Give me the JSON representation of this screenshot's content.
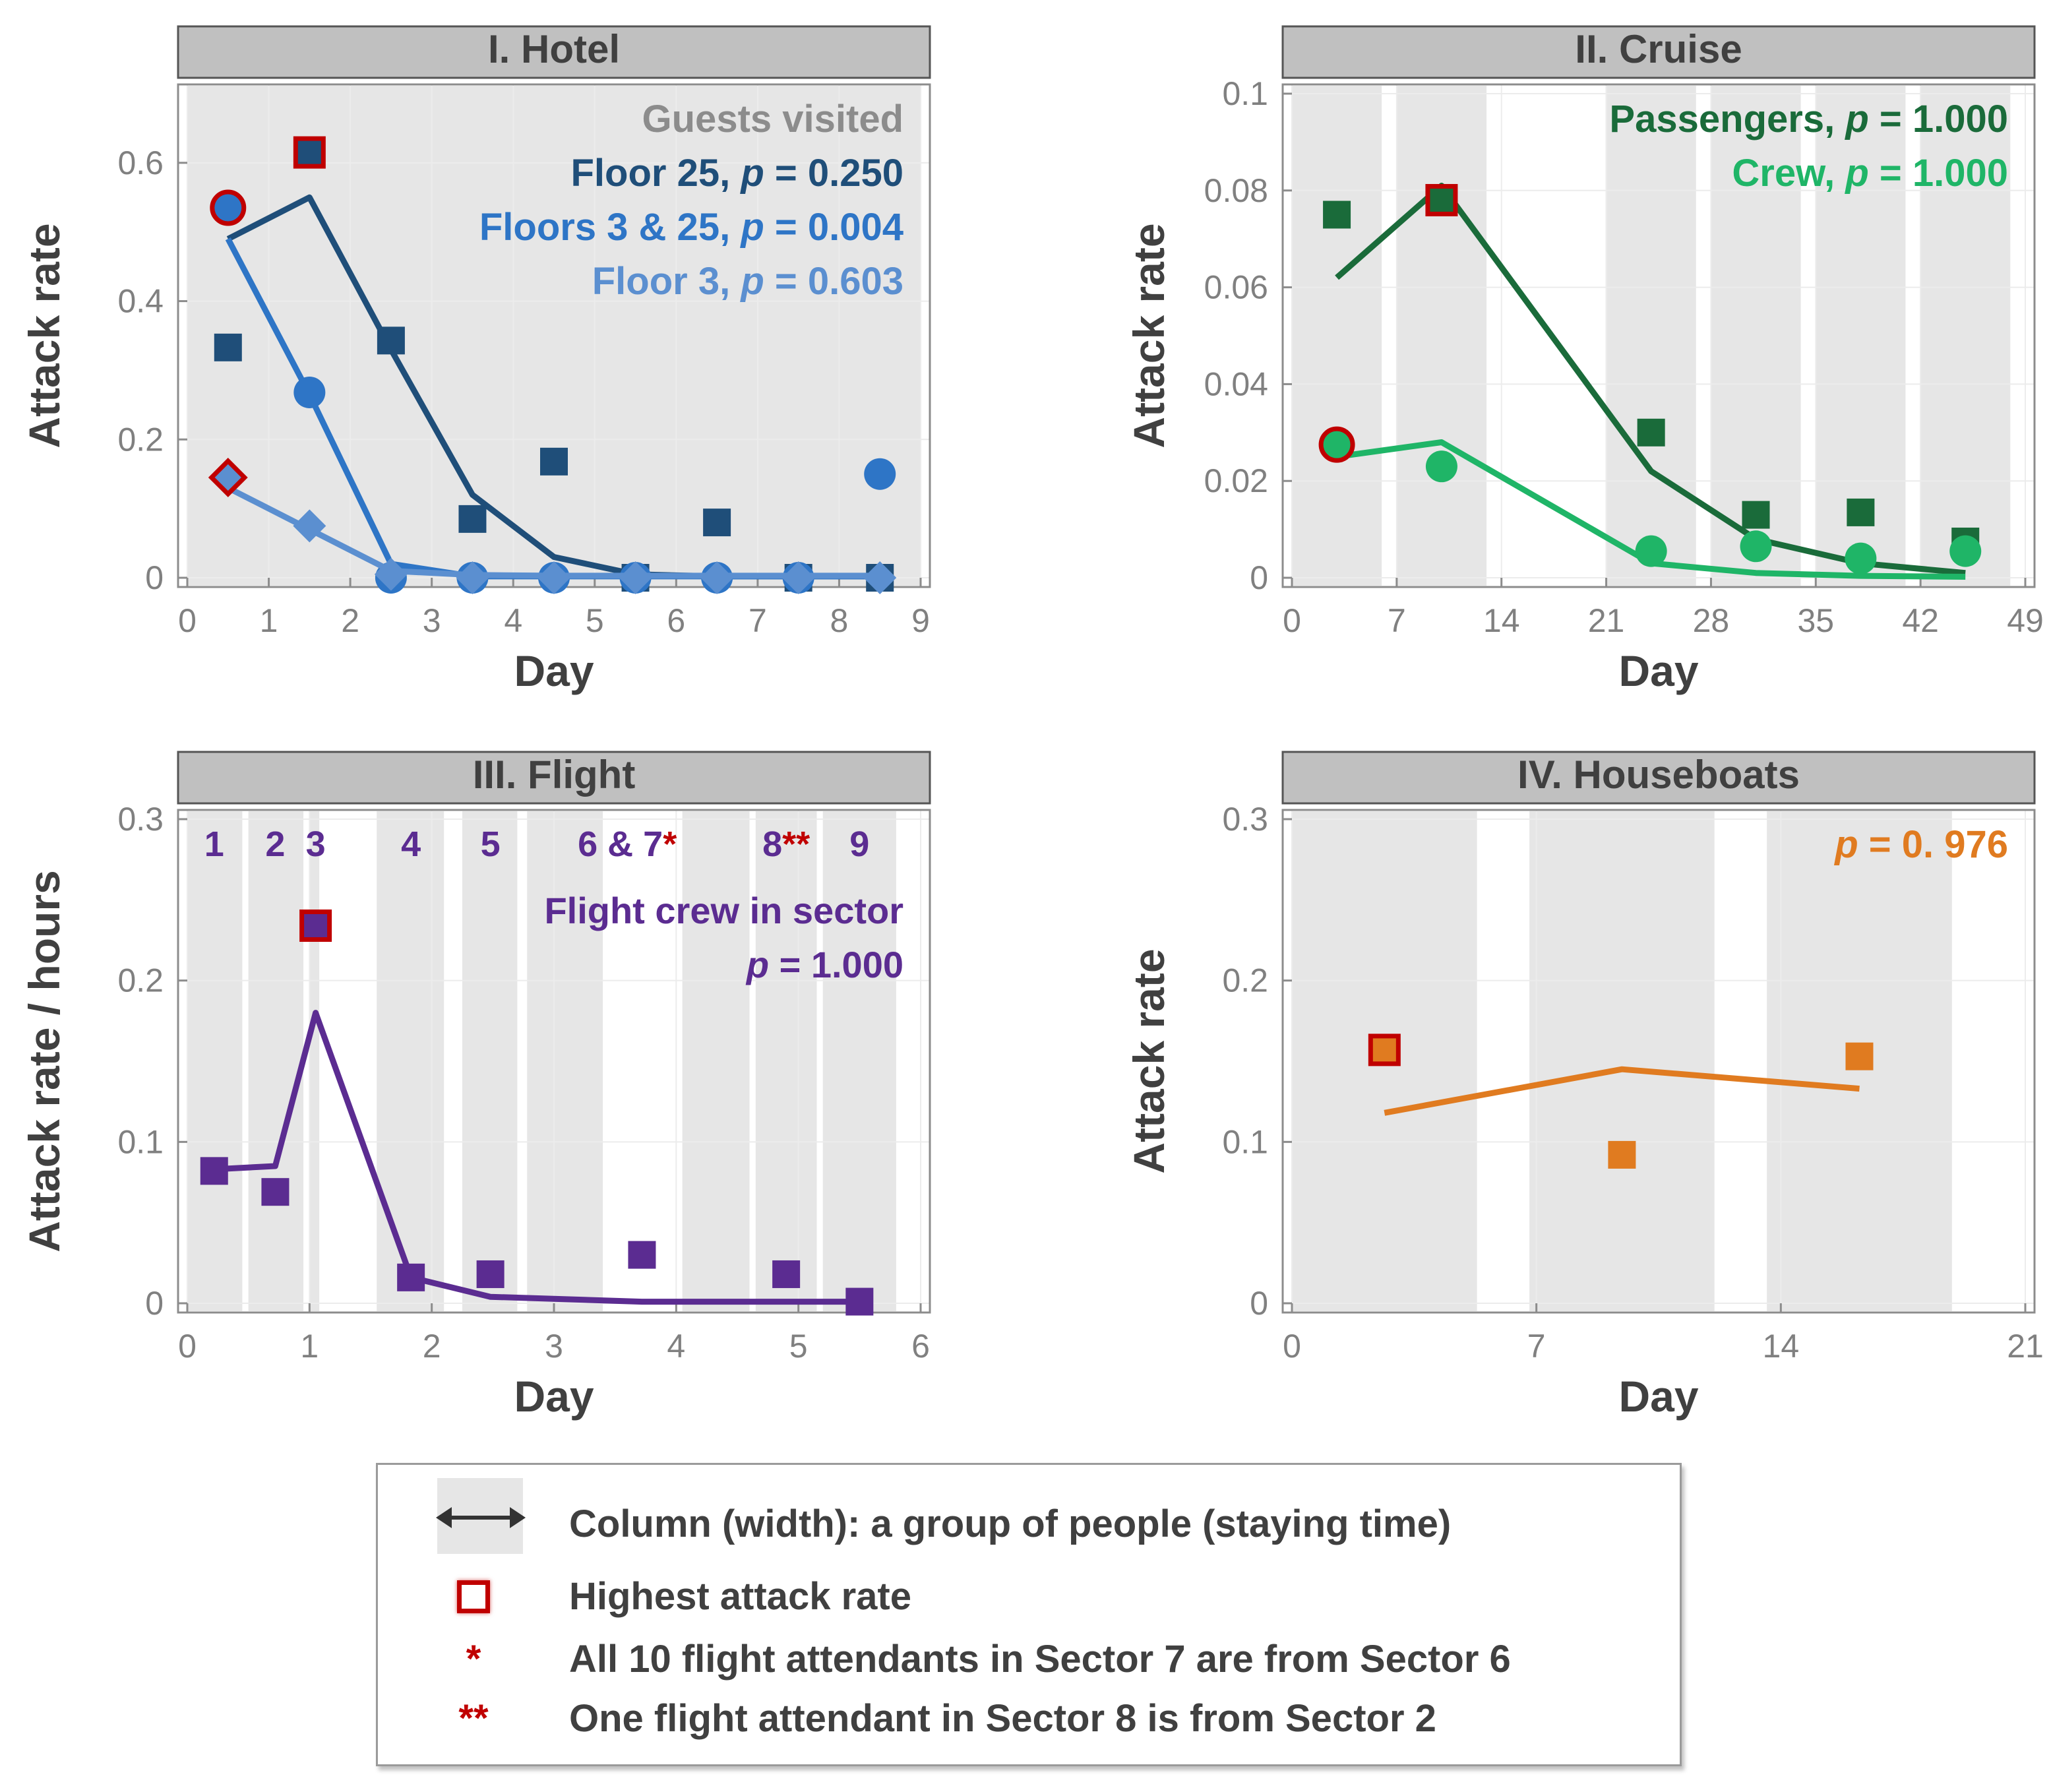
{
  "chart_data": [
    {
      "type": "scatter",
      "panel_title": "I. Hotel",
      "xlabel": "Day",
      "ylabel": "Attack rate",
      "xlim": [
        0,
        9
      ],
      "ylim": [
        0,
        0.7
      ],
      "xticks": [
        "0",
        "1",
        "2",
        "3",
        "4",
        "5",
        "6",
        "7",
        "8",
        "9"
      ],
      "yticks": [
        "0",
        "0.2",
        "0.4",
        "0.6"
      ],
      "columns": [
        [
          0,
          1
        ],
        [
          1,
          2
        ],
        [
          2,
          3
        ],
        [
          3,
          4
        ],
        [
          4,
          5
        ],
        [
          5,
          6
        ],
        [
          6,
          7
        ],
        [
          7,
          8
        ],
        [
          8,
          9
        ]
      ],
      "legend_title": "Guests visited",
      "series": [
        {
          "name": "Floor 25",
          "p_label": "p",
          "p_value": "= 0.250",
          "color": "#1f4e79",
          "marker": "square",
          "points": [
            [
              0.5,
              0.333
            ],
            [
              1.5,
              0.615
            ],
            [
              2.5,
              0.343
            ],
            [
              3.5,
              0.085
            ],
            [
              4.5,
              0.168
            ],
            [
              5.5,
              0
            ],
            [
              6.5,
              0.08
            ],
            [
              7.5,
              0
            ],
            [
              8.5,
              0
            ]
          ],
          "fit": [
            [
              0.5,
              0.49
            ],
            [
              1.5,
              0.55
            ],
            [
              2.5,
              0.33
            ],
            [
              3.5,
              0.12
            ],
            [
              4.5,
              0.03
            ],
            [
              5.5,
              0.005
            ],
            [
              6.5,
              0.002
            ],
            [
              7.5,
              0.002
            ],
            [
              8.5,
              0.002
            ]
          ],
          "highest_index": 1
        },
        {
          "name": "Floors 3 & 25",
          "p_label": "p",
          "p_value": "= 0.004",
          "color": "#2e75c6",
          "marker": "circle",
          "points": [
            [
              0.5,
              0.535
            ],
            [
              1.5,
              0.268
            ],
            [
              2.5,
              0
            ],
            [
              3.5,
              0
            ],
            [
              4.5,
              0
            ],
            [
              5.5,
              0
            ],
            [
              6.5,
              0
            ],
            [
              7.5,
              0
            ],
            [
              8.5,
              0.15
            ]
          ],
          "fit": [
            [
              0.5,
              0.49
            ],
            [
              1.5,
              0.265
            ],
            [
              2.5,
              0.02
            ],
            [
              3.5,
              0.002
            ],
            [
              4.5,
              0.002
            ],
            [
              5.5,
              0.002
            ],
            [
              6.5,
              0.002
            ],
            [
              7.5,
              0.002
            ],
            [
              8.5,
              0.002
            ]
          ],
          "highest_index": 0
        },
        {
          "name": "Floor 3",
          "p_label": "p",
          "p_value": "= 0.603",
          "color": "#5b8fd0",
          "marker": "diamond",
          "points": [
            [
              0.5,
              0.145
            ],
            [
              1.5,
              0.075
            ],
            [
              2.5,
              0.005
            ],
            [
              3.5,
              0
            ],
            [
              4.5,
              0
            ],
            [
              5.5,
              0
            ],
            [
              6.5,
              0
            ],
            [
              7.5,
              0
            ],
            [
              8.5,
              0
            ]
          ],
          "fit": [
            [
              0.5,
              0.13
            ],
            [
              1.5,
              0.07
            ],
            [
              2.5,
              0.01
            ],
            [
              3.5,
              0.004
            ],
            [
              4.5,
              0.003
            ],
            [
              5.5,
              0.003
            ],
            [
              6.5,
              0.003
            ],
            [
              7.5,
              0.003
            ],
            [
              8.5,
              0.003
            ]
          ],
          "highest_index": 0
        }
      ]
    },
    {
      "type": "scatter",
      "panel_title": "II. Cruise",
      "xlabel": "Day",
      "ylabel": "Attack rate",
      "xlim": [
        0,
        49
      ],
      "ylim": [
        0,
        0.1
      ],
      "xticks": [
        "0",
        "7",
        "14",
        "21",
        "28",
        "35",
        "42",
        "49"
      ],
      "yticks": [
        "0",
        "0.02",
        "0.04",
        "0.06",
        "0.08",
        "0.1"
      ],
      "columns": [
        [
          0,
          6
        ],
        [
          7,
          13
        ],
        [
          21,
          27
        ],
        [
          28,
          34
        ],
        [
          35,
          41
        ],
        [
          42,
          48
        ]
      ],
      "series": [
        {
          "name": "Passengers",
          "p_label": "p",
          "p_value": "= 1.000",
          "color": "#1a6b3a",
          "marker": "square",
          "points": [
            [
              3,
              0.075
            ],
            [
              10,
              0.078
            ],
            [
              24,
              0.03
            ],
            [
              31,
              0.013
            ],
            [
              38,
              0.0135
            ],
            [
              45,
              0.0075
            ]
          ],
          "fit": [
            [
              3,
              0.062
            ],
            [
              10,
              0.081
            ],
            [
              24,
              0.022
            ],
            [
              31,
              0.008
            ],
            [
              38,
              0.003
            ],
            [
              45,
              0.001
            ]
          ],
          "highest_index": 1
        },
        {
          "name": "Crew",
          "p_label": "p",
          "p_value": "= 1.000",
          "color": "#1fb567",
          "marker": "circle",
          "points": [
            [
              3,
              0.0275
            ],
            [
              10,
              0.023
            ],
            [
              24,
              0.0055
            ],
            [
              31,
              0.0065
            ],
            [
              38,
              0.004
            ],
            [
              45,
              0.0055
            ]
          ],
          "fit": [
            [
              3,
              0.025
            ],
            [
              10,
              0.028
            ],
            [
              24,
              0.003
            ],
            [
              31,
              0.001
            ],
            [
              38,
              0.0004
            ],
            [
              45,
              0.0002
            ]
          ],
          "highest_index": 0
        }
      ]
    },
    {
      "type": "scatter",
      "panel_title": "III. Flight",
      "xlabel": "Day",
      "ylabel": "Attack rate / hours",
      "xlim": [
        0,
        6
      ],
      "ylim": [
        0,
        0.3
      ],
      "xticks": [
        "0",
        "1",
        "2",
        "3",
        "4",
        "5",
        "6"
      ],
      "yticks": [
        "0",
        "0.1",
        "0.2",
        "0.3"
      ],
      "columns": [
        [
          0.0,
          0.45
        ],
        [
          0.5,
          0.95
        ],
        [
          1.0,
          1.08
        ],
        [
          1.55,
          2.1
        ],
        [
          2.25,
          2.7
        ],
        [
          2.78,
          3.4
        ],
        [
          4.05,
          4.6
        ],
        [
          4.65,
          5.15
        ],
        [
          5.2,
          5.8
        ]
      ],
      "sector_labels": [
        {
          "text": "1",
          "x": 0.22
        },
        {
          "text": "2",
          "x": 0.72
        },
        {
          "text": "3",
          "x": 1.05
        },
        {
          "text": "4",
          "x": 1.83
        },
        {
          "text": "5",
          "x": 2.48
        },
        {
          "text": "6 & 7",
          "x": 3.6,
          "star": "*"
        },
        {
          "text": "8",
          "x": 4.9,
          "star": "**"
        },
        {
          "text": "9",
          "x": 5.5
        }
      ],
      "legend_title": "Flight crew in sector",
      "series": [
        {
          "name": "Flight crew in sector",
          "p_label": "p",
          "p_value": "= 1.000",
          "color": "#5b2c91",
          "marker": "square",
          "points": [
            [
              0.22,
              0.082
            ],
            [
              0.72,
              0.069
            ],
            [
              1.05,
              0.234
            ],
            [
              1.83,
              0.016
            ],
            [
              2.48,
              0.018
            ],
            [
              3.72,
              0.03
            ],
            [
              4.9,
              0.018
            ],
            [
              5.5,
              0.001
            ]
          ],
          "fit": [
            [
              0.22,
              0.083
            ],
            [
              0.72,
              0.085
            ],
            [
              1.05,
              0.18
            ],
            [
              1.83,
              0.016
            ],
            [
              2.48,
              0.004
            ],
            [
              3.72,
              0.001
            ],
            [
              4.9,
              0.001
            ],
            [
              5.5,
              0.001
            ]
          ],
          "highest_index": 2
        }
      ]
    },
    {
      "type": "scatter",
      "panel_title": "IV. Houseboats",
      "xlabel": "Day",
      "ylabel": "Attack rate",
      "xlim": [
        0,
        21
      ],
      "ylim": [
        0,
        0.3
      ],
      "xticks": [
        "0",
        "7",
        "14",
        "21"
      ],
      "yticks": [
        "0",
        "0.1",
        "0.2",
        "0.3"
      ],
      "columns": [
        [
          0,
          5.3
        ],
        [
          6.8,
          12.1
        ],
        [
          13.6,
          18.9
        ]
      ],
      "series": [
        {
          "name": "",
          "p_label": "p",
          "p_value": "= 0. 976",
          "color": "#e07b20",
          "marker": "square",
          "points": [
            [
              2.65,
              0.157
            ],
            [
              9.45,
              0.092
            ],
            [
              16.25,
              0.153
            ]
          ],
          "fit": [
            [
              2.65,
              0.118
            ],
            [
              9.45,
              0.145
            ],
            [
              16.25,
              0.133
            ]
          ],
          "highest_index": 0
        }
      ]
    }
  ],
  "legend": {
    "column_text": "Column (width): a group of people (staying time)",
    "highest_text": "Highest attack rate",
    "star1_symbol": "*",
    "star1_text": "All 10 flight attendants in Sector 7 are from Sector 6",
    "star2_symbol": "**",
    "star2_text": "One flight attendant in Sector 8 is from Sector 2"
  },
  "colors": {
    "column_fill": "#e6e6e6",
    "title_bar": "#c0c0c0",
    "highlight": "#c00000",
    "axis_text": "#808080",
    "label_text": "#404040"
  }
}
